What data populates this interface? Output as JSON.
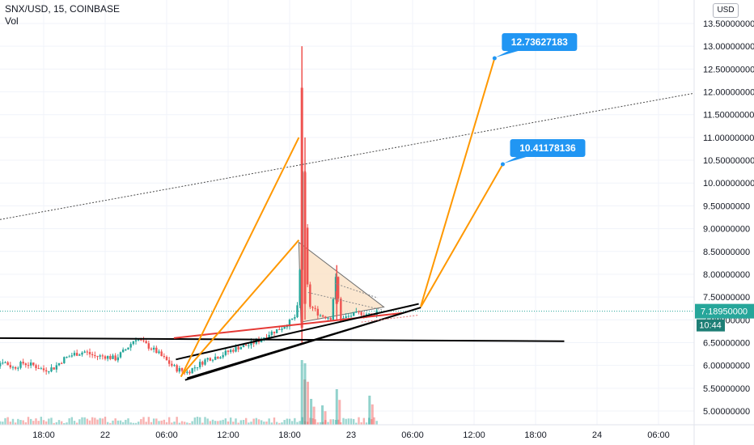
{
  "header": {
    "symbol": "SNX/USD, 15, COINBASE",
    "volume_label": "Vol"
  },
  "axis": {
    "currency": "USD",
    "price_ticks": [
      "13.50000000",
      "13.00000000",
      "12.50000000",
      "12.00000000",
      "11.50000000",
      "11.00000000",
      "10.50000000",
      "10.00000000",
      "9.50000000",
      "9.00000000",
      "8.50000000",
      "8.00000000",
      "7.50000000",
      "7.00000000",
      "6.50000000",
      "6.00000000",
      "5.50000000",
      "5.00000000"
    ],
    "price_tick_values": [
      13.5,
      13.0,
      12.5,
      12.0,
      11.5,
      11.0,
      10.5,
      10.0,
      9.5,
      9.0,
      8.5,
      8.0,
      7.5,
      7.0,
      6.5,
      6.0,
      5.5,
      5.0
    ],
    "time_ticks": [
      "18:00",
      "22",
      "06:00",
      "12:00",
      "18:00",
      "23",
      "06:00",
      "12:00",
      "18:00",
      "24",
      "06:00"
    ],
    "time_tick_hours": [
      18,
      24,
      30,
      36,
      42,
      48,
      54,
      60,
      66,
      72,
      78
    ]
  },
  "current_price": {
    "value": "7.18950000",
    "price": 7.1895,
    "countdown": "10:44",
    "color": "#26a69a"
  },
  "targets": [
    {
      "label": "12.73627183",
      "price": 12.73627183,
      "hour": 62.0
    },
    {
      "label": "10.41178136",
      "price": 10.41178136,
      "hour": 62.8
    }
  ],
  "colors": {
    "up": "#26a69a",
    "down": "#ef5350",
    "orange": "#ff9800",
    "red_line": "#e53935",
    "black_line": "#000000",
    "callout": "#2196f3",
    "triangle_fill": "#fbe3c8"
  },
  "chart_data": {
    "type": "candlestick",
    "title": "SNX/USD, 15, COINBASE",
    "xlabel": "",
    "ylabel": "USD",
    "ylim": [
      4.9,
      13.8
    ],
    "x_unit": "hours since 21 00:00",
    "price_anchors": [
      [
        12.0,
        5.85
      ],
      [
        13.0,
        5.95
      ],
      [
        14.0,
        6.1
      ],
      [
        15.0,
        5.95
      ],
      [
        16.0,
        6.05
      ],
      [
        17.0,
        6.0
      ],
      [
        18.0,
        5.9
      ],
      [
        19.0,
        5.95
      ],
      [
        20.0,
        6.15
      ],
      [
        21.0,
        6.25
      ],
      [
        22.0,
        6.3
      ],
      [
        23.0,
        6.2
      ],
      [
        24.0,
        6.2
      ],
      [
        25.0,
        6.15
      ],
      [
        26.0,
        6.35
      ],
      [
        27.0,
        6.6
      ],
      [
        28.0,
        6.45
      ],
      [
        29.0,
        6.3
      ],
      [
        30.0,
        6.1
      ],
      [
        30.5,
        6.0
      ],
      [
        31.0,
        5.92
      ],
      [
        32.0,
        5.85
      ],
      [
        33.0,
        6.0
      ],
      [
        34.0,
        6.15
      ],
      [
        35.0,
        6.2
      ],
      [
        36.0,
        6.3
      ],
      [
        37.0,
        6.4
      ],
      [
        38.0,
        6.45
      ],
      [
        39.0,
        6.55
      ],
      [
        40.0,
        6.7
      ],
      [
        41.0,
        6.8
      ],
      [
        42.0,
        6.95
      ],
      [
        42.7,
        7.1
      ],
      [
        43.1,
        8.4
      ],
      [
        43.3,
        10.9
      ],
      [
        43.6,
        8.0
      ],
      [
        44.0,
        7.3
      ],
      [
        44.5,
        7.2
      ],
      [
        45.0,
        7.1
      ],
      [
        46.0,
        7.05
      ],
      [
        46.5,
        7.9
      ],
      [
        47.0,
        7.0
      ],
      [
        48.0,
        7.1
      ],
      [
        49.0,
        7.15
      ],
      [
        50.0,
        7.1
      ],
      [
        50.5,
        7.2
      ]
    ],
    "spikes": [
      {
        "hour": 43.2,
        "high": 13.0,
        "low": 6.5
      },
      {
        "hour": 43.5,
        "high": 11.0,
        "low": 7.0
      },
      {
        "hour": 46.6,
        "high": 8.2,
        "low": 7.0
      }
    ],
    "volume_spikes": [
      {
        "hour": 43.2,
        "rel": 1.0
      },
      {
        "hour": 43.5,
        "rel": 0.95
      },
      {
        "hour": 44.1,
        "rel": 0.4
      },
      {
        "hour": 46.6,
        "rel": 0.55
      },
      {
        "hour": 45.2,
        "rel": 0.3
      },
      {
        "hour": 49.8,
        "rel": 0.45
      }
    ]
  }
}
